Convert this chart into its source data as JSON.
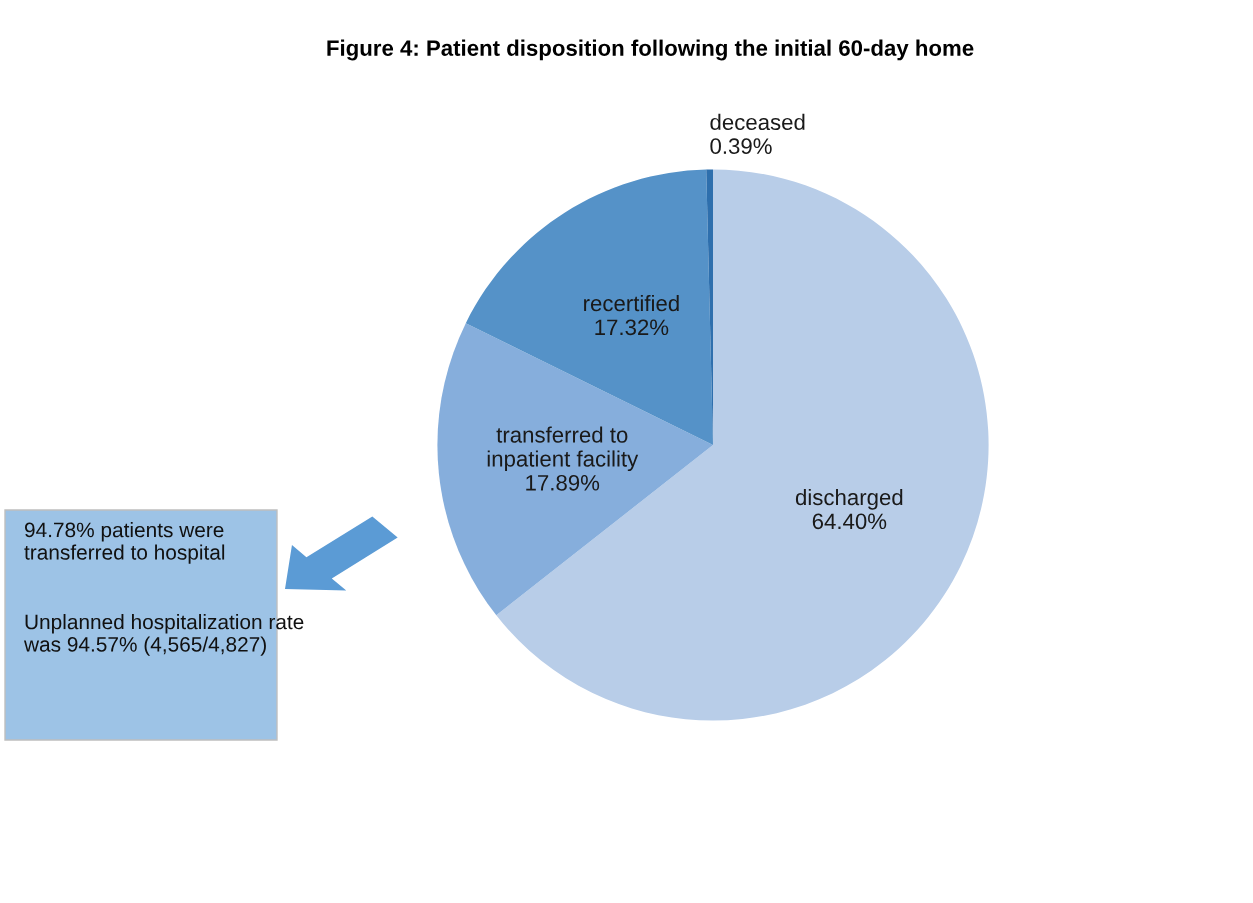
{
  "chart_data": {
    "type": "pie",
    "title": "Figure 4: Patient disposition following the initial 60-day home",
    "categories": [
      "discharged",
      "transferred to\ninpatient facility",
      "recertified",
      "deceased"
    ],
    "values": [
      64.4,
      17.89,
      17.32,
      0.39
    ],
    "value_labels": [
      "64.40%",
      "17.89%",
      "17.32%",
      "0.39%"
    ],
    "colors": [
      "#b8cde8",
      "#86aedc",
      "#5592c8",
      "#2e6fad"
    ],
    "annotations": [
      "94.78% patients were transferred to hospital",
      "Unplanned hospitalization rate was 94.57% (4,565/4,827)"
    ]
  }
}
